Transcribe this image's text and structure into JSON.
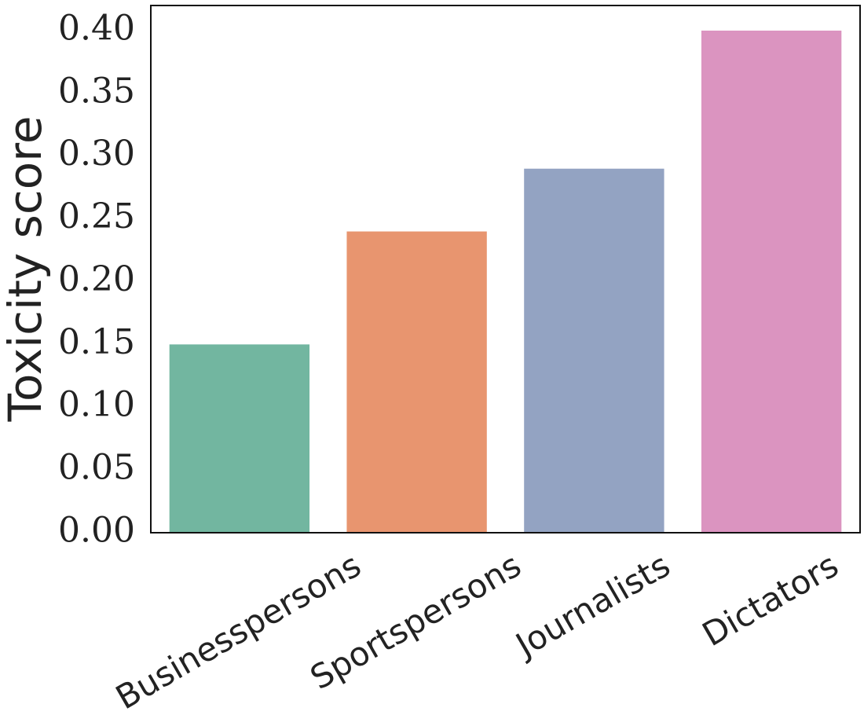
{
  "chart_data": {
    "type": "bar",
    "y_label": "Toxicity score",
    "categories": [
      "Businesspersons",
      "Sportspersons",
      "Journalists",
      "Dictators"
    ],
    "values": [
      0.15,
      0.24,
      0.29,
      0.4
    ],
    "colors": [
      "#72b6a0",
      "#e8956f",
      "#93a3c2",
      "#db94c0"
    ],
    "ylim": [
      0,
      0.42
    ],
    "yticks": [
      {
        "value": 0,
        "label": "0.00"
      },
      {
        "value": 0.05,
        "label": "0.05"
      },
      {
        "value": 0.1,
        "label": "0.10"
      },
      {
        "value": 0.15,
        "label": "0.15"
      },
      {
        "value": 0.2,
        "label": "0.20"
      },
      {
        "value": 0.25,
        "label": "0.25"
      },
      {
        "value": 0.3,
        "label": "0.30"
      },
      {
        "value": 0.35,
        "label": "0.35"
      },
      {
        "value": 0.4,
        "label": "0.40"
      }
    ],
    "grid": false
  }
}
